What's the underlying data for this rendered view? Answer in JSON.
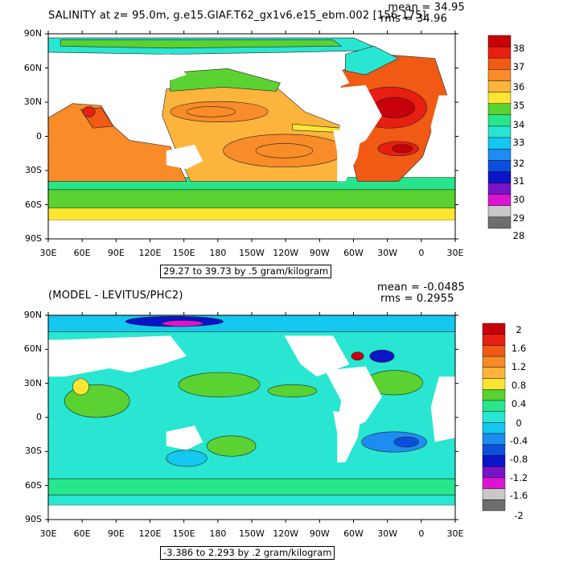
{
  "chart_data": [
    {
      "type": "heatmap",
      "title": "SALINITY at z=  95.0m, g.e15.GIAF.T62_gx1v6.e15_ebm.002 [156-175]",
      "stats": {
        "mean": "mean = 34.95",
        "rms": "rms = 34.96"
      },
      "x_ticks": [
        "30E",
        "60E",
        "90E",
        "120E",
        "150E",
        "180",
        "150W",
        "120W",
        "90W",
        "60W",
        "30W",
        "0",
        "30E"
      ],
      "y_ticks": [
        "90N",
        "60N",
        "30N",
        "0",
        "30S",
        "60S",
        "90S"
      ],
      "range_label": "29.27 to 39.73 by .5 gram/kilogram",
      "colorbar": {
        "labels": [
          "38",
          "37",
          "36",
          "35",
          "34",
          "33",
          "32",
          "31",
          "30",
          "29",
          "28"
        ],
        "colors": [
          "#c8000a",
          "#e81e10",
          "#f05a14",
          "#f88c28",
          "#fcb43c",
          "#fce632",
          "#5ad232",
          "#28e68c",
          "#28e6d2",
          "#14c8f0",
          "#1e8cf0",
          "#0a50dc",
          "#0a14c8",
          "#7814c8",
          "#dc14d2",
          "#c8c8c8",
          "#6e6e6e"
        ]
      }
    },
    {
      "type": "heatmap",
      "title": "(MODEL - LEVITUS/PHC2)",
      "stats": {
        "mean": "mean = -0.0485",
        "rms": "rms = 0.2955"
      },
      "x_ticks": [
        "30E",
        "60E",
        "90E",
        "120E",
        "150E",
        "180",
        "150W",
        "120W",
        "90W",
        "60W",
        "30W",
        "0",
        "30E"
      ],
      "y_ticks": [
        "90N",
        "60N",
        "30N",
        "0",
        "30S",
        "60S",
        "90S"
      ],
      "range_label": "-3.386 to 2.293 by .2 gram/kilogram",
      "colorbar": {
        "labels": [
          "2",
          "1.6",
          "1.2",
          "0.8",
          "0.4",
          "0",
          "-0.4",
          "-0.8",
          "-1.2",
          "-1.6",
          "-2"
        ],
        "colors": [
          "#c8000a",
          "#e81e10",
          "#f05a14",
          "#f88c28",
          "#fcb43c",
          "#fce632",
          "#5ad232",
          "#28e68c",
          "#28e6d2",
          "#14c8f0",
          "#1e8cf0",
          "#0a50dc",
          "#0a14c8",
          "#7814c8",
          "#dc14d2",
          "#c8c8c8",
          "#6e6e6e"
        ]
      }
    }
  ]
}
